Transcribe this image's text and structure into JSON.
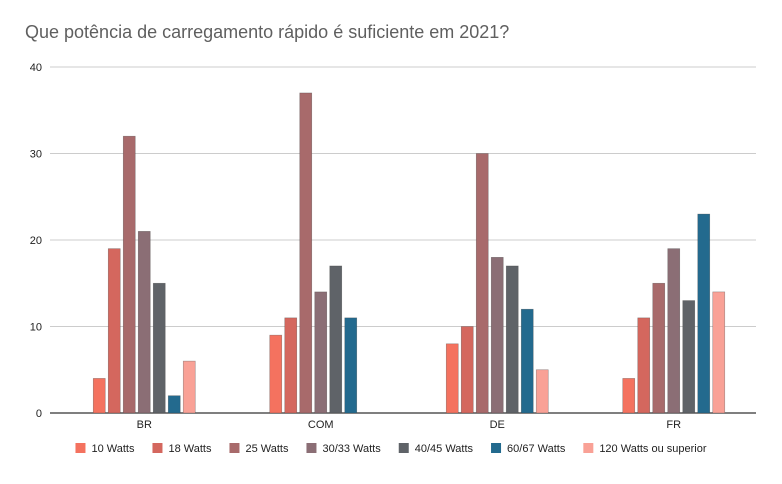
{
  "chart_data": {
    "type": "bar",
    "title": "Que potência de carregamento rápido é suficiente em 2021?",
    "xlabel": "",
    "ylabel": "",
    "ylim": [
      0,
      40
    ],
    "yticks": [
      0,
      10,
      20,
      30,
      40
    ],
    "grid": true,
    "legend_position": "bottom",
    "categories": [
      "BR",
      "COM",
      "DE",
      "FR"
    ],
    "series": [
      {
        "name": "10 Watts",
        "color": "#f4725f",
        "values": [
          4,
          9,
          8,
          4
        ]
      },
      {
        "name": "18 Watts",
        "color": "#d4675e",
        "values": [
          19,
          11,
          10,
          11
        ]
      },
      {
        "name": "25 Watts",
        "color": "#a86a6b",
        "values": [
          32,
          37,
          30,
          15
        ]
      },
      {
        "name": "30/33 Watts",
        "color": "#8b6e75",
        "values": [
          21,
          14,
          18,
          19
        ]
      },
      {
        "name": "40/45 Watts",
        "color": "#5f6368",
        "values": [
          15,
          17,
          17,
          13
        ]
      },
      {
        "name": "60/67 Watts",
        "color": "#236a8e",
        "values": [
          2,
          11,
          12,
          23
        ]
      },
      {
        "name": "120 Watts ou superior",
        "color": "#f9a196",
        "values": [
          6,
          null,
          5,
          14
        ]
      }
    ]
  }
}
